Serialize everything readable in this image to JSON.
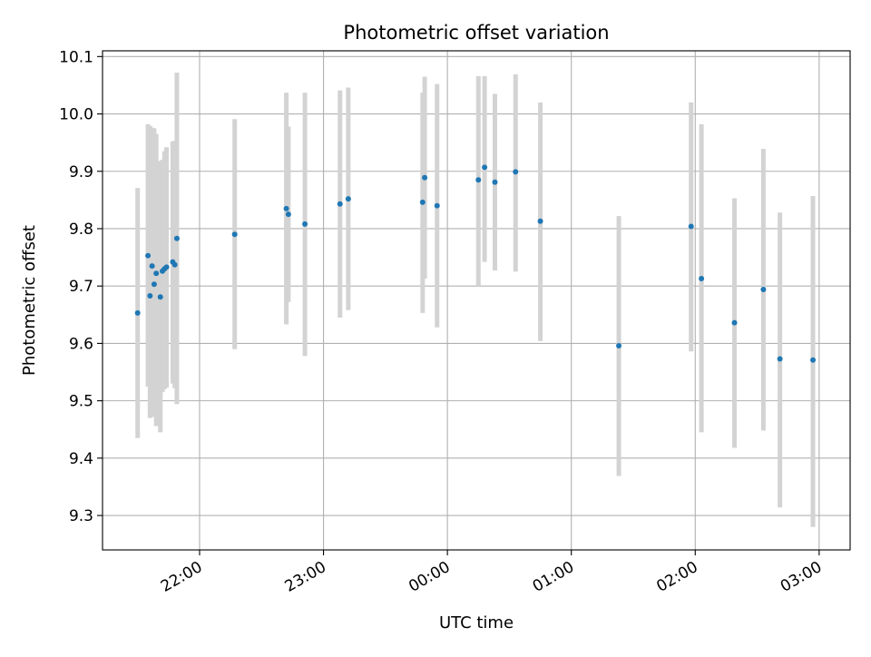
{
  "chart_data": {
    "type": "scatter",
    "title": "Photometric offset variation",
    "xlabel": "UTC time",
    "ylabel": "Photometric offset",
    "x_axis": {
      "kind": "time",
      "range": [
        "21:13",
        "03:15"
      ],
      "ticks": [
        "21:00",
        "22:00",
        "23:00",
        "00:00",
        "01:00",
        "02:00",
        "03:00"
      ],
      "tick_labels": [
        "",
        "22:00",
        "23:00",
        "00:00",
        "01:00",
        "02:00",
        "03:00"
      ],
      "tick_label_rotation": 30
    },
    "y_axis": {
      "range": [
        9.24,
        10.11
      ],
      "ticks": [
        9.3,
        9.4,
        9.5,
        9.6,
        9.7,
        9.8,
        9.9,
        10.0,
        10.1
      ],
      "tick_labels": [
        "9.3",
        "9.4",
        "9.5",
        "9.6",
        "9.7",
        "9.8",
        "9.9",
        "10.0",
        "10.1"
      ]
    },
    "grid": true,
    "legend": false,
    "colors": {
      "points": "#1f77b4",
      "error_bars": "#d3d3d3",
      "grid": "#b0b0b0"
    },
    "series": [
      {
        "points": [
          {
            "x": "21:30",
            "y": 9.653,
            "err_low": 9.435,
            "err_high": 9.871
          },
          {
            "x": "21:35",
            "y": 9.753,
            "err_low": 9.525,
            "err_high": 9.982
          },
          {
            "x": "21:36",
            "y": 9.683,
            "err_low": 9.47,
            "err_high": 9.979
          },
          {
            "x": "21:37",
            "y": 9.735,
            "err_low": 9.49,
            "err_high": 9.976
          },
          {
            "x": "21:38",
            "y": 9.703,
            "err_low": 9.472,
            "err_high": 9.975
          },
          {
            "x": "21:39",
            "y": 9.722,
            "err_low": 9.456,
            "err_high": 9.965
          },
          {
            "x": "21:41",
            "y": 9.681,
            "err_low": 9.445,
            "err_high": 9.918
          },
          {
            "x": "21:42",
            "y": 9.726,
            "err_low": 9.515,
            "err_high": 9.92
          },
          {
            "x": "21:43",
            "y": 9.73,
            "err_low": 9.52,
            "err_high": 9.935
          },
          {
            "x": "21:44",
            "y": 9.733,
            "err_low": 9.523,
            "err_high": 9.942
          },
          {
            "x": "21:47",
            "y": 9.742,
            "err_low": 9.53,
            "err_high": 9.952
          },
          {
            "x": "21:48",
            "y": 9.737,
            "err_low": 9.522,
            "err_high": 9.953
          },
          {
            "x": "21:49",
            "y": 9.783,
            "err_low": 9.494,
            "err_high": 10.072
          },
          {
            "x": "22:17",
            "y": 9.79,
            "err_low": 9.59,
            "err_high": 9.991
          },
          {
            "x": "22:42",
            "y": 9.835,
            "err_low": 9.633,
            "err_high": 10.037
          },
          {
            "x": "22:43",
            "y": 9.825,
            "err_low": 9.672,
            "err_high": 9.978
          },
          {
            "x": "22:51",
            "y": 9.808,
            "err_low": 9.578,
            "err_high": 10.037
          },
          {
            "x": "23:08",
            "y": 9.843,
            "err_low": 9.645,
            "err_high": 10.041
          },
          {
            "x": "23:12",
            "y": 9.852,
            "err_low": 9.658,
            "err_high": 10.046
          },
          {
            "x": "23:48",
            "y": 9.846,
            "err_low": 9.653,
            "err_high": 10.037
          },
          {
            "x": "23:49",
            "y": 9.889,
            "err_low": 9.713,
            "err_high": 10.065
          },
          {
            "x": "23:55",
            "y": 9.84,
            "err_low": 9.628,
            "err_high": 10.052
          },
          {
            "x": "00:15",
            "y": 9.885,
            "err_low": 9.7,
            "err_high": 10.066
          },
          {
            "x": "00:18",
            "y": 9.907,
            "err_low": 9.742,
            "err_high": 10.066
          },
          {
            "x": "00:23",
            "y": 9.881,
            "err_low": 9.727,
            "err_high": 10.035
          },
          {
            "x": "00:33",
            "y": 9.899,
            "err_low": 9.725,
            "err_high": 10.069
          },
          {
            "x": "00:45",
            "y": 9.813,
            "err_low": 9.604,
            "err_high": 10.02
          },
          {
            "x": "01:23",
            "y": 9.596,
            "err_low": 9.369,
            "err_high": 9.822
          },
          {
            "x": "01:58",
            "y": 9.804,
            "err_low": 9.586,
            "err_high": 10.02
          },
          {
            "x": "02:03",
            "y": 9.713,
            "err_low": 9.445,
            "err_high": 9.982
          },
          {
            "x": "02:19",
            "y": 9.636,
            "err_low": 9.418,
            "err_high": 9.853
          },
          {
            "x": "02:33",
            "y": 9.694,
            "err_low": 9.448,
            "err_high": 9.939
          },
          {
            "x": "02:41",
            "y": 9.573,
            "err_low": 9.314,
            "err_high": 9.828
          },
          {
            "x": "02:57",
            "y": 9.571,
            "err_low": 9.28,
            "err_high": 9.857
          }
        ]
      }
    ]
  }
}
